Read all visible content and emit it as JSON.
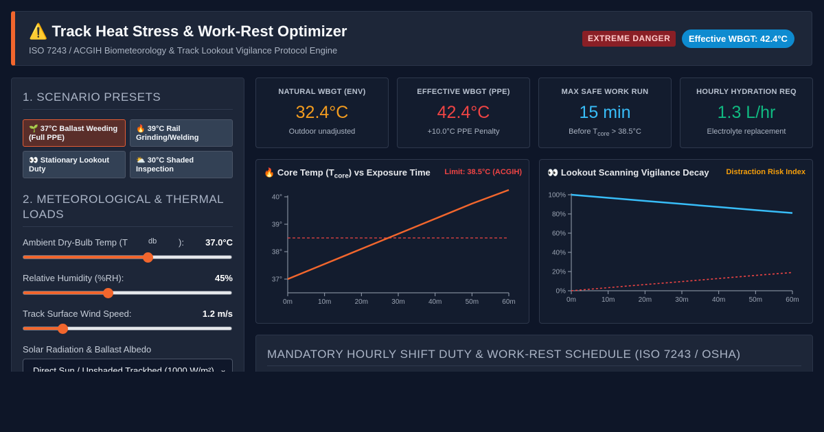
{
  "header": {
    "icon": "warning-icon",
    "icon_glyph": "⚠️",
    "title": "Track Heat Stress & Work-Rest Optimizer",
    "subtitle": "ISO 7243 / ACGIH Biometeorology & Track Lookout Vigilance Protocol Engine",
    "danger_badge": "EXTREME DANGER",
    "wbgt_badge": "Effective WBGT: 42.4°C"
  },
  "presets": {
    "title": "1. SCENARIO PRESETS",
    "items": [
      {
        "icon": "seedling-icon",
        "glyph": "🌱",
        "label": "37°C Ballast Weeding (Full PPE)",
        "active": true
      },
      {
        "icon": "fire-icon",
        "glyph": "🔥",
        "label": "39°C Rail Grinding/Welding",
        "active": false
      },
      {
        "icon": "eyes-icon",
        "glyph": "👀",
        "label": "Stationary Lookout Duty",
        "active": false
      },
      {
        "icon": "sun-cloud-icon",
        "glyph": "⛅",
        "label": "30°C Shaded Inspection",
        "active": false
      }
    ]
  },
  "loads": {
    "title": "2. METEOROLOGICAL & THERMAL LOADS",
    "ambient": {
      "label_pre": "Ambient Dry-Bulb Temp (T",
      "label_sub": "db",
      "label_post": "):",
      "value": "37.0°C",
      "fraction": 0.6
    },
    "humidity": {
      "label": "Relative Humidity (%RH):",
      "value": "45%",
      "fraction": 0.41
    },
    "wind": {
      "label": "Track Surface Wind Speed:",
      "value": "1.2 m/s",
      "fraction": 0.19
    },
    "solar": {
      "label": "Solar Radiation & Ballast Albedo",
      "selected": "Direct Sun / Unshaded Trackbed (1000 W/m²)"
    }
  },
  "metrics": [
    {
      "label": "NATURAL WBGT (ENV)",
      "value": "32.4°C",
      "note": "Outdoor unadjusted",
      "color": "#f39c1f"
    },
    {
      "label": "EFFECTIVE WBGT (PPE)",
      "value": "42.4°C",
      "note": "+10.0°C PPE Penalty",
      "color": "#ef4444"
    },
    {
      "label": "MAX SAFE WORK RUN",
      "value": "15 min",
      "note_pre": "Before T",
      "note_sub": "core",
      "note_post": " > 38.5°C",
      "color": "#38bdf8"
    },
    {
      "label": "HOURLY HYDRATION REQ",
      "value": "1.3 L/hr",
      "note": "Electrolyte replacement",
      "color": "#10b981"
    }
  ],
  "core_chart": {
    "icon": "fire-icon",
    "glyph": "🔥",
    "title_pre": "Core Temp (T",
    "title_sub": "core",
    "title_post": ") vs Exposure Time",
    "limit_label": "Limit: 38.5°C (ACGIH)",
    "line_color": "#f2662d",
    "limit_color": "#ef4444"
  },
  "vigilance_chart": {
    "icon": "eyes-icon",
    "glyph": "👀",
    "title": "Lookout Scanning Vigilance Decay",
    "risk_label": "Distraction Risk Index",
    "line_color": "#38bdf8",
    "risk_color": "#ef4444",
    "risk_label_color": "#f59e0b"
  },
  "schedule": {
    "title": "MANDATORY HOURLY SHIFT DUTY & WORK-REST SCHEDULE (ISO 7243 / OSHA)"
  },
  "chart_data": [
    {
      "type": "line",
      "x": [
        0,
        10,
        20,
        30,
        40,
        50,
        60
      ],
      "xticks": [
        "0m",
        "10m",
        "20m",
        "30m",
        "40m",
        "50m",
        "60m"
      ],
      "yticks": [
        "37°",
        "38°",
        "39°",
        "40°"
      ],
      "ylim": [
        36.5,
        40
      ],
      "series": [
        {
          "values": [
            37.0,
            37.55,
            38.1,
            38.65,
            39.2,
            39.75,
            40.25
          ]
        }
      ],
      "reference_line": 38.5
    },
    {
      "type": "line",
      "x": [
        0,
        10,
        20,
        30,
        40,
        50,
        60
      ],
      "xticks": [
        "0m",
        "10m",
        "20m",
        "30m",
        "40m",
        "50m",
        "60m"
      ],
      "yticks": [
        "0%",
        "20%",
        "40%",
        "60%",
        "80%",
        "100%"
      ],
      "ylim": [
        0,
        100
      ],
      "series": [
        {
          "values": [
            100,
            96.8,
            93.6,
            90.4,
            87.2,
            84.0,
            81.0
          ]
        },
        {
          "values": [
            0,
            3.2,
            6.4,
            9.6,
            12.8,
            16.0,
            19.0
          ],
          "dashed": true
        }
      ]
    }
  ]
}
